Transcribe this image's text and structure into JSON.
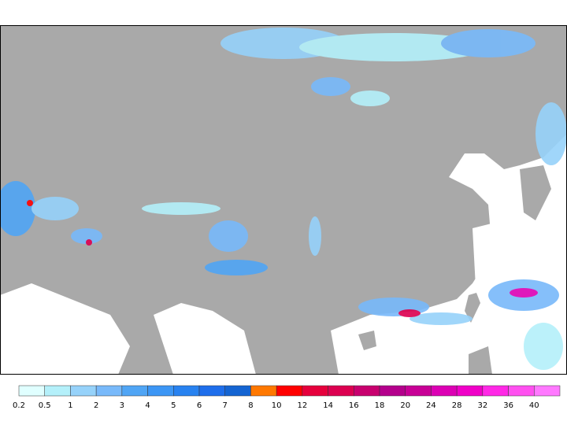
{
  "legend": {
    "items": [
      {
        "label": "0.2",
        "color": "#e0ffff"
      },
      {
        "label": "0.5",
        "color": "#b4f0fa"
      },
      {
        "label": "1",
        "color": "#96d2fa"
      },
      {
        "label": "2",
        "color": "#78b9fa"
      },
      {
        "label": "3",
        "color": "#50a5f5"
      },
      {
        "label": "4",
        "color": "#3c96f5"
      },
      {
        "label": "5",
        "color": "#2882f0"
      },
      {
        "label": "6",
        "color": "#1e6eeb"
      },
      {
        "label": "7",
        "color": "#1464d2"
      },
      {
        "label": "8",
        "color": "#ff7800"
      },
      {
        "label": "10",
        "color": "#ff0000"
      },
      {
        "label": "12",
        "color": "#e6003c"
      },
      {
        "label": "14",
        "color": "#dc0050"
      },
      {
        "label": "16",
        "color": "#c8006e"
      },
      {
        "label": "18",
        "color": "#b4008c"
      },
      {
        "label": "20",
        "color": "#c80096"
      },
      {
        "label": "24",
        "color": "#dc00b4"
      },
      {
        "label": "28",
        "color": "#f000c8"
      },
      {
        "label": "32",
        "color": "#ff28e6"
      },
      {
        "label": "36",
        "color": "#ff50f0"
      },
      {
        "label": "40",
        "color": "#ff78ff"
      }
    ]
  }
}
